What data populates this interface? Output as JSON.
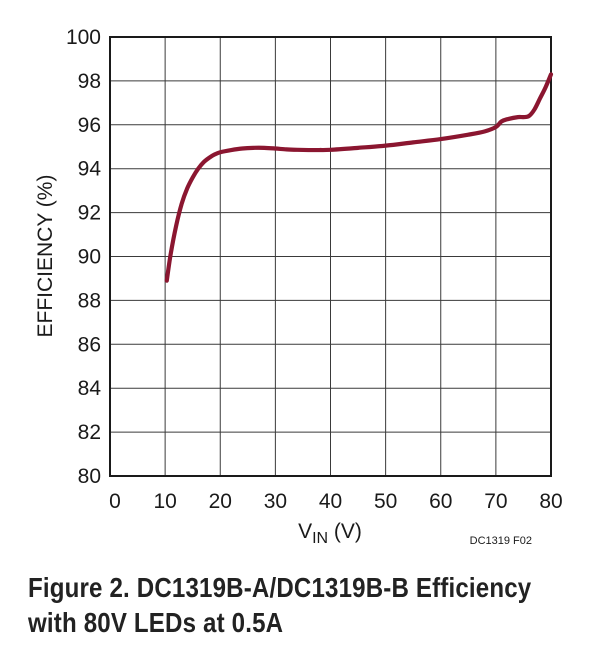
{
  "chart_data": {
    "type": "line",
    "xlabel": "V",
    "xlabel_sub": "IN",
    "xlabel_unit": " (V)",
    "ylabel": "EFFICIENCY (%)",
    "xlim": [
      0,
      80
    ],
    "ylim": [
      80,
      100
    ],
    "x_ticks": [
      "0",
      "10",
      "20",
      "30",
      "40",
      "50",
      "60",
      "70",
      "80"
    ],
    "y_ticks": [
      "80",
      "82",
      "84",
      "86",
      "88",
      "90",
      "92",
      "94",
      "96",
      "98",
      "100"
    ],
    "grid": true,
    "series": [
      {
        "x": [
          10.3,
          11,
          12,
          13,
          14,
          15,
          16,
          17,
          18,
          19,
          20,
          22,
          24,
          26,
          28,
          30,
          32,
          34,
          36,
          38,
          40,
          45,
          50,
          55,
          60,
          65,
          68,
          70,
          71,
          72,
          74,
          75,
          76,
          77,
          78,
          79,
          80
        ],
        "y": [
          88.9,
          90.1,
          91.4,
          92.4,
          93.1,
          93.6,
          94.0,
          94.3,
          94.5,
          94.65,
          94.75,
          94.85,
          94.92,
          94.95,
          94.95,
          94.92,
          94.88,
          94.86,
          94.85,
          94.85,
          94.86,
          94.95,
          95.05,
          95.2,
          95.35,
          95.55,
          95.7,
          95.9,
          96.15,
          96.25,
          96.35,
          96.35,
          96.4,
          96.7,
          97.2,
          97.7,
          98.3
        ],
        "color": "#8b1630"
      }
    ],
    "annotations": [
      "DC1319 F02"
    ]
  },
  "caption": {
    "line1": "Figure 2. DC1319B-A/DC1319B-B Efficiency",
    "line2": "with 80V LEDs at 0.5A"
  }
}
